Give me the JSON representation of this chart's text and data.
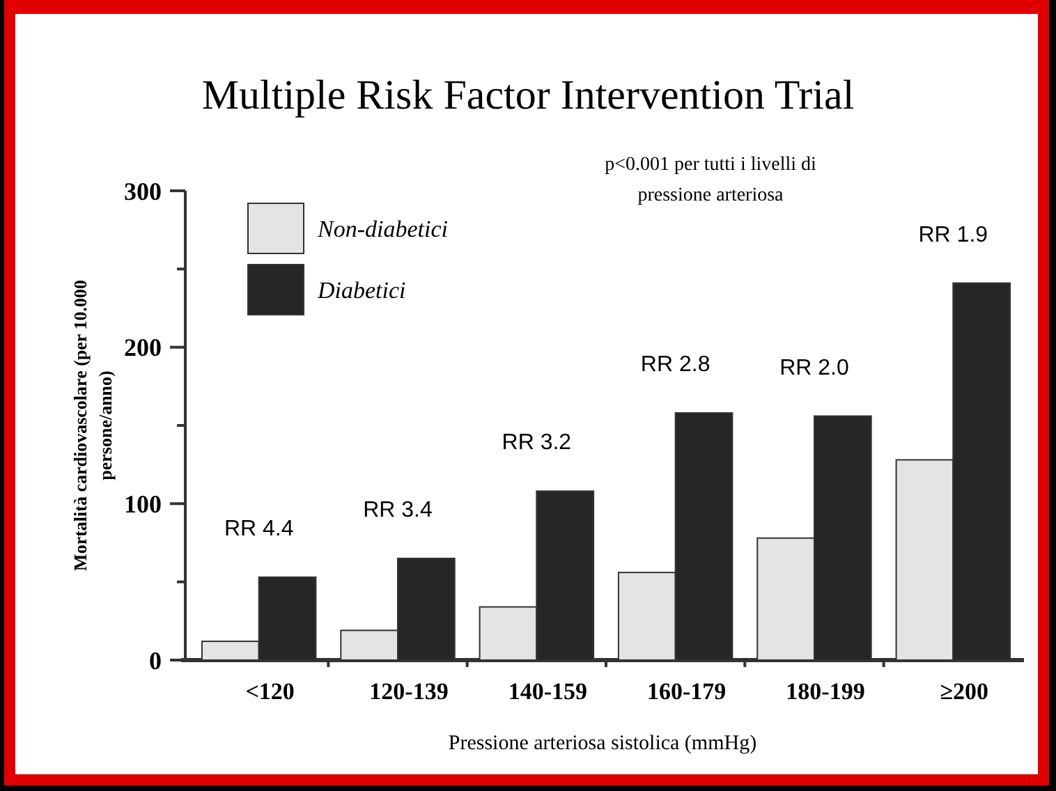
{
  "chart_data": {
    "type": "bar",
    "title": "Multiple Risk Factor Intervention Trial",
    "xlabel": "Pressione arteriosa sistolica (mmHg)",
    "ylabel": "Mortalità cardiovascolare (per 10.000 persone/anno)",
    "categories": [
      "<120",
      "120-139",
      "140-159",
      "160-179",
      "180-199",
      "≥200"
    ],
    "series": [
      {
        "name": "Non-diabetici",
        "color": "#e4e4e4",
        "values": [
          12,
          19,
          34,
          56,
          78,
          128
        ]
      },
      {
        "name": "Diabetici",
        "color": "#262626",
        "values": [
          53,
          65,
          108,
          158,
          156,
          241
        ]
      }
    ],
    "ylim": [
      0,
      300
    ],
    "yticks": [
      0,
      {
        "value": 50,
        "label": null
      },
      100,
      {
        "value": 150,
        "label": null
      },
      200,
      {
        "value": 250,
        "label": null
      },
      300
    ],
    "legend": "top left",
    "grid": false,
    "annotations": [
      "p<0.001 per tutti i livelli di pressione arteriosa",
      "RR 4.4",
      "RR 3.4",
      "RR 3.2",
      "RR 2.8",
      "RR 2.0",
      "RR 1.9"
    ]
  }
}
